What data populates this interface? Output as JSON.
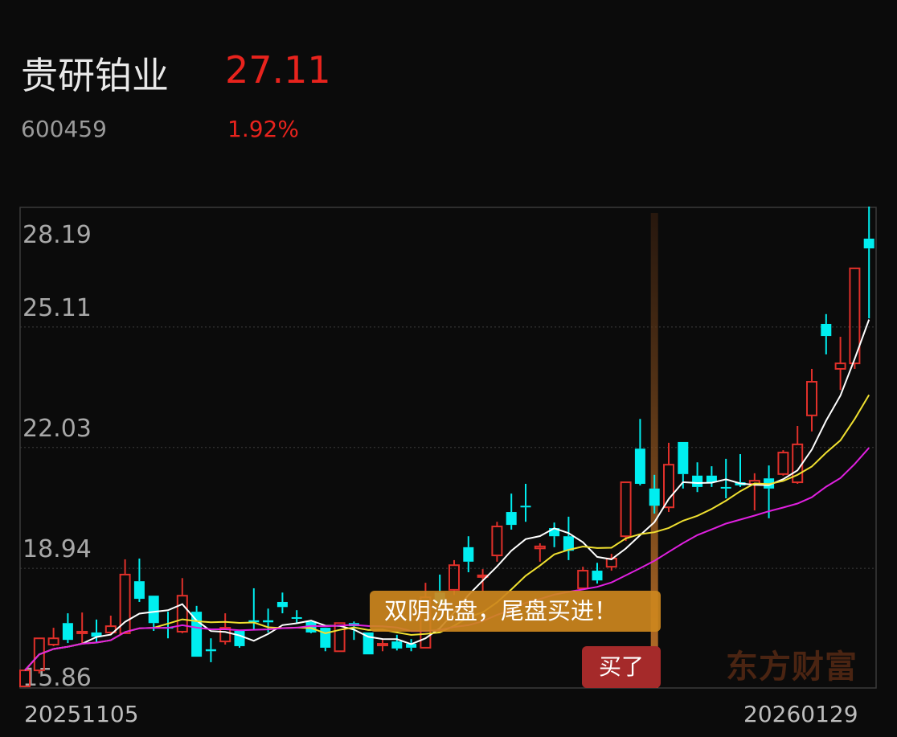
{
  "header": {
    "name": "贵研铂业",
    "price": "27.11",
    "code": "600459",
    "change_pct": "1.92%"
  },
  "colors": {
    "up": "#e0302a",
    "down": "#00eef0",
    "ma_short": "#ffffff",
    "ma_mid": "#f0e030",
    "ma_long": "#e020e0",
    "accent_price": "#e8231d",
    "banner": "#cd871e",
    "buy_badge": "#a52a2a"
  },
  "annotation": {
    "banner_text": "双阴洗盘，尾盘买进！",
    "buy_label": "买了",
    "marked_candle_index": 44
  },
  "watermark": "东方财富",
  "chart_data": {
    "type": "candlestick",
    "ylim": [
      15.86,
      28.19
    ],
    "y_ticks": [
      "28.19",
      "25.11",
      "22.03",
      "18.94",
      "15.86"
    ],
    "grid": true,
    "x_start_label": "20251105",
    "x_end_label": "20260129",
    "ma_periods": [
      5,
      10,
      20
    ],
    "candles": [
      [
        15.92,
        16.33,
        15.9,
        16.33
      ],
      [
        16.33,
        17.15,
        16.25,
        17.15
      ],
      [
        16.99,
        17.42,
        16.95,
        17.15
      ],
      [
        17.54,
        17.79,
        17.03,
        17.11
      ],
      [
        17.28,
        17.81,
        16.99,
        17.32
      ],
      [
        17.3,
        17.63,
        17.03,
        17.19
      ],
      [
        17.3,
        17.73,
        17.24,
        17.46
      ],
      [
        17.28,
        19.17,
        17.28,
        18.78
      ],
      [
        18.61,
        19.19,
        18.08,
        18.16
      ],
      [
        18.24,
        18.24,
        17.34,
        17.54
      ],
      [
        17.44,
        17.83,
        17.15,
        17.4
      ],
      [
        17.32,
        18.69,
        17.28,
        18.24
      ],
      [
        17.83,
        17.98,
        16.68,
        16.68
      ],
      [
        16.87,
        17.15,
        16.54,
        16.82
      ],
      [
        17.07,
        17.79,
        16.99,
        17.42
      ],
      [
        17.34,
        17.34,
        16.91,
        16.95
      ],
      [
        17.61,
        18.43,
        17.38,
        17.56
      ],
      [
        17.61,
        17.91,
        17.3,
        17.56
      ],
      [
        18.08,
        18.32,
        17.79,
        17.95
      ],
      [
        17.69,
        17.87,
        17.54,
        17.65
      ],
      [
        17.58,
        17.58,
        17.28,
        17.3
      ],
      [
        17.42,
        17.42,
        16.82,
        16.91
      ],
      [
        16.82,
        17.54,
        16.82,
        17.54
      ],
      [
        17.54,
        17.58,
        17.11,
        17.46
      ],
      [
        17.3,
        17.3,
        16.74,
        16.74
      ],
      [
        16.97,
        17.11,
        16.82,
        17.01
      ],
      [
        17.07,
        17.24,
        16.84,
        16.89
      ],
      [
        17.01,
        17.13,
        16.82,
        16.91
      ],
      [
        16.91,
        18.57,
        16.91,
        18.2
      ],
      [
        18.32,
        18.78,
        18.04,
        18.04
      ],
      [
        18.39,
        19.15,
        18.26,
        19.02
      ],
      [
        19.48,
        19.76,
        18.84,
        19.11
      ],
      [
        18.72,
        18.92,
        18.35,
        18.76
      ],
      [
        19.27,
        20.13,
        19.11,
        20.01
      ],
      [
        20.38,
        20.85,
        19.93,
        20.05
      ],
      [
        20.54,
        21.1,
        20.13,
        20.5
      ],
      [
        19.45,
        19.58,
        19.11,
        19.5
      ],
      [
        19.97,
        20.11,
        19.48,
        19.76
      ],
      [
        19.76,
        20.26,
        19.15,
        19.39
      ],
      [
        18.43,
        18.98,
        18.39,
        18.88
      ],
      [
        18.88,
        19.08,
        18.55,
        18.63
      ],
      [
        18.98,
        19.31,
        18.88,
        19.19
      ],
      [
        19.76,
        21.14,
        19.64,
        21.14
      ],
      [
        22.0,
        22.76,
        21.06,
        21.1
      ],
      [
        20.98,
        21.33,
        20.34,
        20.54
      ],
      [
        20.5,
        22.15,
        20.38,
        21.59
      ],
      [
        22.17,
        22.17,
        20.98,
        21.35
      ],
      [
        21.31,
        21.65,
        20.89,
        21.02
      ],
      [
        21.31,
        21.55,
        21.02,
        21.14
      ],
      [
        21.02,
        21.74,
        20.73,
        20.98
      ],
      [
        21.14,
        21.86,
        21.02,
        21.06
      ],
      [
        21.1,
        21.37,
        20.42,
        21.18
      ],
      [
        21.24,
        21.57,
        20.22,
        20.98
      ],
      [
        21.35,
        21.96,
        21.31,
        21.9
      ],
      [
        21.14,
        22.58,
        21.1,
        22.11
      ],
      [
        22.85,
        24.04,
        22.44,
        23.71
      ],
      [
        25.19,
        25.44,
        24.41,
        24.88
      ],
      [
        24.04,
        24.86,
        23.5,
        24.18
      ],
      [
        24.18,
        26.61,
        24.04,
        26.61
      ],
      [
        27.37,
        28.19,
        25.33,
        27.12
      ]
    ]
  }
}
